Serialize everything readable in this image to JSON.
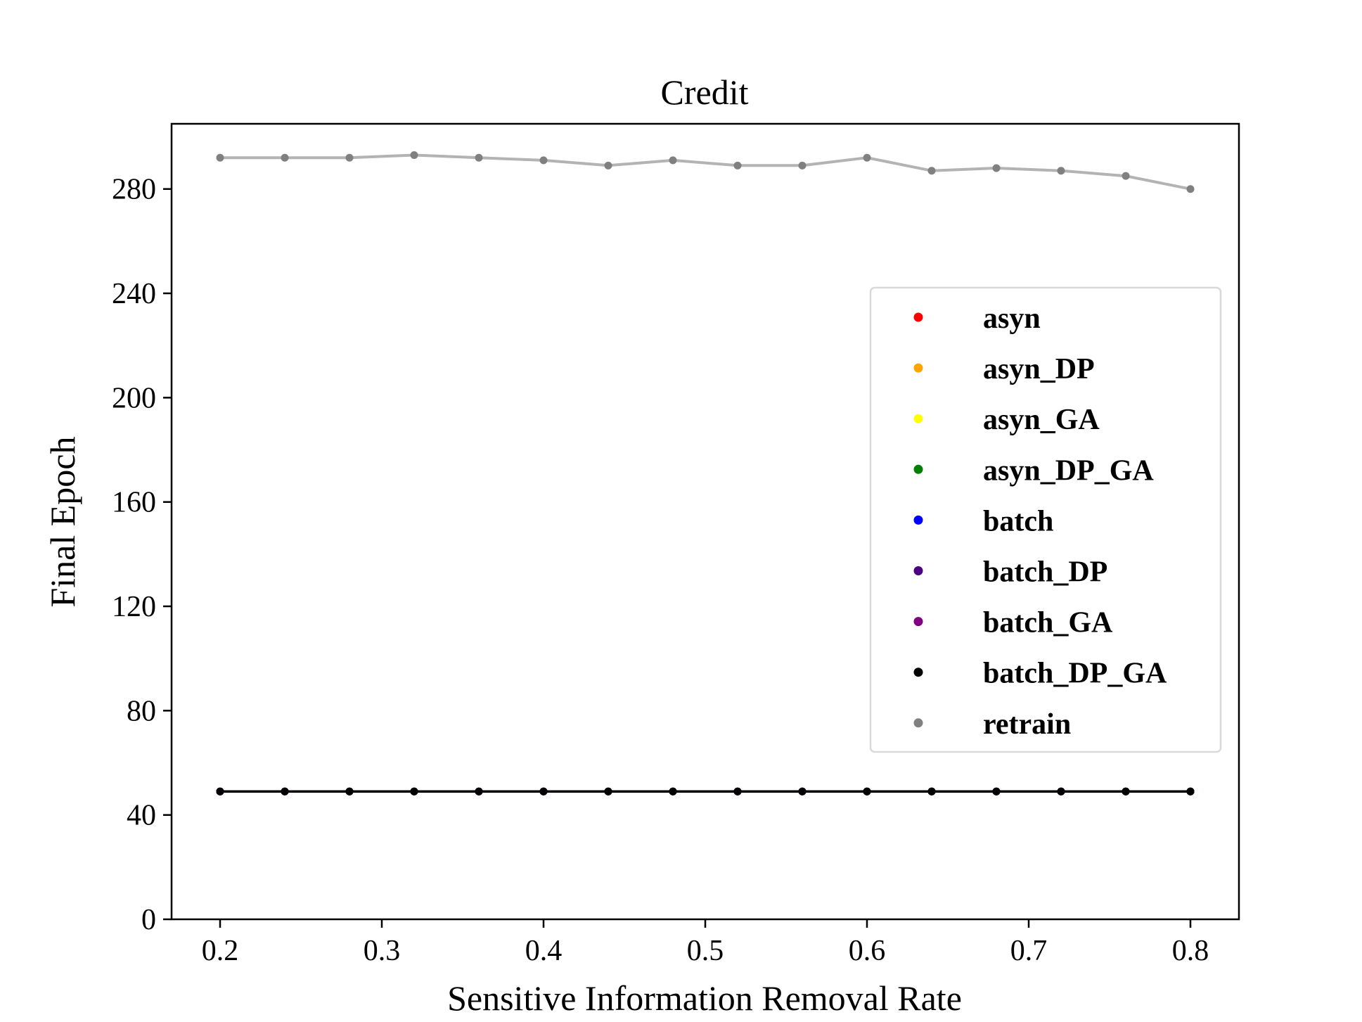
{
  "chart_data": {
    "type": "line",
    "title": "Credit",
    "xlabel": "Sensitive Information Removal Rate",
    "ylabel": "Final Epoch",
    "xlim": [
      0.17,
      0.83
    ],
    "ylim": [
      0,
      305
    ],
    "xticks": [
      0.2,
      0.3,
      0.4,
      0.5,
      0.6,
      0.7,
      0.8
    ],
    "yticks": [
      0,
      40,
      80,
      120,
      160,
      200,
      240,
      280
    ],
    "grid": false,
    "legend_position": "center-right",
    "x": [
      0.2,
      0.24,
      0.28,
      0.32,
      0.36,
      0.4,
      0.44,
      0.48,
      0.52,
      0.56,
      0.6,
      0.64,
      0.68,
      0.72,
      0.76,
      0.8
    ],
    "series": [
      {
        "name": "asyn",
        "color": "#ff0000",
        "values": [
          49,
          49,
          49,
          49,
          49,
          49,
          49,
          49,
          49,
          49,
          49,
          49,
          49,
          49,
          49,
          49
        ]
      },
      {
        "name": "asyn_DP",
        "color": "#ffa500",
        "values": [
          49,
          49,
          49,
          49,
          49,
          49,
          49,
          49,
          49,
          49,
          49,
          49,
          49,
          49,
          49,
          49
        ]
      },
      {
        "name": "asyn_GA",
        "color": "#ffff00",
        "values": [
          49,
          49,
          49,
          49,
          49,
          49,
          49,
          49,
          49,
          49,
          49,
          49,
          49,
          49,
          49,
          49
        ]
      },
      {
        "name": "asyn_DP_GA",
        "color": "#008000",
        "values": [
          49,
          49,
          49,
          49,
          49,
          49,
          49,
          49,
          49,
          49,
          49,
          49,
          49,
          49,
          49,
          49
        ]
      },
      {
        "name": "batch",
        "color": "#0000ff",
        "values": [
          49,
          49,
          49,
          49,
          49,
          49,
          49,
          49,
          49,
          49,
          49,
          49,
          49,
          49,
          49,
          49
        ]
      },
      {
        "name": "batch_DP",
        "color": "#4b0082",
        "values": [
          49,
          49,
          49,
          49,
          49,
          49,
          49,
          49,
          49,
          49,
          49,
          49,
          49,
          49,
          49,
          49
        ]
      },
      {
        "name": "batch_GA",
        "color": "#800080",
        "values": [
          49,
          49,
          49,
          49,
          49,
          49,
          49,
          49,
          49,
          49,
          49,
          49,
          49,
          49,
          49,
          49
        ]
      },
      {
        "name": "batch_DP_GA",
        "color": "#000000",
        "values": [
          49,
          49,
          49,
          49,
          49,
          49,
          49,
          49,
          49,
          49,
          49,
          49,
          49,
          49,
          49,
          49
        ]
      },
      {
        "name": "retrain",
        "color": "#808080",
        "values": [
          292,
          292,
          292,
          293,
          292,
          291,
          289,
          291,
          289,
          289,
          292,
          287,
          288,
          287,
          285,
          280
        ]
      }
    ]
  }
}
